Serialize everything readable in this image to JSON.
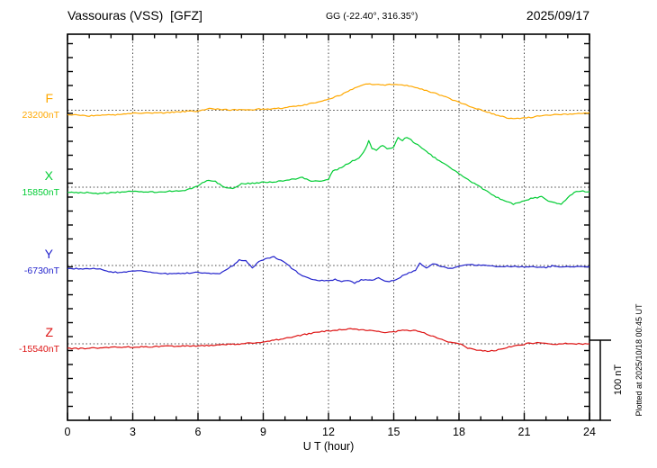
{
  "chart_data": {
    "type": "line",
    "title": "Vassouras (VSS)  [GFZ]",
    "subtitle": "GG (-22.40°, 316.35°)",
    "date": "2025/09/17",
    "xlabel": "U T (hour)",
    "x_range": [
      0,
      24
    ],
    "x_ticks": [
      0,
      3,
      6,
      9,
      12,
      15,
      18,
      21,
      24
    ],
    "x_minor_step_hours": 1,
    "grid": "dotted vertical lines every 3 hours; dotted horizontal line at each series baseline",
    "legend_position": "left",
    "scale_bar_label": "100 nT",
    "scale_bar_nT": 100,
    "plotted_at": "Plotted at 2025/10/18 00:45 UT",
    "units_note": "points are [hour UT, offset in nT from the labelled baseline value]",
    "series": [
      {
        "name": "F",
        "baseline_value_label": "23200nT",
        "baseline_nT": 23200,
        "color": "#FFA800",
        "points": [
          [
            0,
            -5
          ],
          [
            0.5,
            -6
          ],
          [
            1,
            -7
          ],
          [
            1.5,
            -6
          ],
          [
            2,
            -6
          ],
          [
            2.5,
            -5
          ],
          [
            3,
            -4
          ],
          [
            3.5,
            -3.5
          ],
          [
            4,
            -3.5
          ],
          [
            4.5,
            -3
          ],
          [
            5,
            -2
          ],
          [
            5.5,
            -1.5
          ],
          [
            6,
            -1
          ],
          [
            6.3,
            1
          ],
          [
            6.6,
            2
          ],
          [
            7,
            1
          ],
          [
            7.5,
            0.5
          ],
          [
            8,
            0.5
          ],
          [
            8.5,
            1
          ],
          [
            9,
            1.5
          ],
          [
            9.5,
            2
          ],
          [
            10,
            3
          ],
          [
            10.5,
            5
          ],
          [
            11,
            7
          ],
          [
            11.5,
            10
          ],
          [
            12,
            14
          ],
          [
            12.5,
            18
          ],
          [
            13,
            25
          ],
          [
            13.3,
            28
          ],
          [
            13.6,
            31
          ],
          [
            13.8,
            33
          ],
          [
            14,
            31
          ],
          [
            14.3,
            32
          ],
          [
            14.6,
            31
          ],
          [
            15,
            32
          ],
          [
            15.3,
            32
          ],
          [
            15.6,
            30.5
          ],
          [
            16,
            28
          ],
          [
            16.5,
            24
          ],
          [
            17,
            20
          ],
          [
            17.5,
            15
          ],
          [
            18,
            10
          ],
          [
            18.5,
            5
          ],
          [
            19,
            0.5
          ],
          [
            19.5,
            -4
          ],
          [
            20,
            -8
          ],
          [
            20.5,
            -11
          ],
          [
            21,
            -9.5
          ],
          [
            21.5,
            -8
          ],
          [
            22,
            -6
          ],
          [
            22.5,
            -5.5
          ],
          [
            23,
            -5
          ],
          [
            23.5,
            -4
          ],
          [
            24,
            -3
          ]
        ]
      },
      {
        "name": "X",
        "baseline_value_label": "15850nT",
        "baseline_nT": 15850,
        "color": "#00CC33",
        "points": [
          [
            0,
            -6
          ],
          [
            0.5,
            -7
          ],
          [
            1,
            -6.5
          ],
          [
            1.5,
            -8
          ],
          [
            2,
            -6.5
          ],
          [
            2.5,
            -6
          ],
          [
            3,
            -5
          ],
          [
            3.5,
            -5.5
          ],
          [
            4,
            -6
          ],
          [
            4.5,
            -5.5
          ],
          [
            5,
            -4.5
          ],
          [
            5.5,
            -3.5
          ],
          [
            6,
            2
          ],
          [
            6.4,
            8
          ],
          [
            6.8,
            7
          ],
          [
            7.2,
            0
          ],
          [
            7.6,
            -1.5
          ],
          [
            8,
            4
          ],
          [
            8.5,
            5
          ],
          [
            9,
            6
          ],
          [
            9.5,
            6.5
          ],
          [
            10,
            8
          ],
          [
            10.5,
            10.5
          ],
          [
            10.8,
            12
          ],
          [
            11.2,
            8
          ],
          [
            11.6,
            7
          ],
          [
            12,
            10
          ],
          [
            12.2,
            20
          ],
          [
            12.5,
            23
          ],
          [
            13,
            31
          ],
          [
            13.4,
            36
          ],
          [
            13.7,
            47
          ],
          [
            13.85,
            57
          ],
          [
            14,
            48
          ],
          [
            14.2,
            46
          ],
          [
            14.5,
            52
          ],
          [
            14.7,
            47
          ],
          [
            15,
            49.5
          ],
          [
            15.2,
            61
          ],
          [
            15.4,
            58
          ],
          [
            15.6,
            62
          ],
          [
            15.9,
            56
          ],
          [
            16.2,
            50
          ],
          [
            16.5,
            44
          ],
          [
            17,
            34
          ],
          [
            17.5,
            26
          ],
          [
            18,
            17
          ],
          [
            18.5,
            8
          ],
          [
            19,
            0
          ],
          [
            19.5,
            -9
          ],
          [
            20,
            -16
          ],
          [
            20.5,
            -21
          ],
          [
            21,
            -17
          ],
          [
            21.3,
            -14
          ],
          [
            21.8,
            -12
          ],
          [
            22.2,
            -18
          ],
          [
            22.7,
            -21
          ],
          [
            23,
            -13
          ],
          [
            23.4,
            -4.5
          ],
          [
            23.7,
            -5
          ],
          [
            24,
            -5.5
          ]
        ]
      },
      {
        "name": "Y",
        "baseline_value_label": "-6730nT",
        "baseline_nT": -6730,
        "color": "#2222CC",
        "points": [
          [
            0,
            -3.5
          ],
          [
            0.5,
            -4
          ],
          [
            1,
            -4
          ],
          [
            1.5,
            -4.5
          ],
          [
            2,
            -8
          ],
          [
            2.5,
            -9
          ],
          [
            3,
            -7
          ],
          [
            3.3,
            -6
          ],
          [
            3.6,
            -8
          ],
          [
            4,
            -9
          ],
          [
            4.3,
            -9.5
          ],
          [
            4.6,
            -10.5
          ],
          [
            5,
            -10
          ],
          [
            5.4,
            -9.5
          ],
          [
            5.9,
            -8.5
          ],
          [
            6.3,
            -9.5
          ],
          [
            6.6,
            -10.5
          ],
          [
            7,
            -9.5
          ],
          [
            7.3,
            -5.5
          ],
          [
            7.7,
            2
          ],
          [
            7.9,
            7
          ],
          [
            8.2,
            5.5
          ],
          [
            8.5,
            -3
          ],
          [
            8.8,
            5.5
          ],
          [
            9.1,
            8
          ],
          [
            9.5,
            10.5
          ],
          [
            9.9,
            5.5
          ],
          [
            10.2,
            -1
          ],
          [
            10.7,
            -11
          ],
          [
            11,
            -15
          ],
          [
            11.5,
            -18
          ],
          [
            12,
            -19
          ],
          [
            12.3,
            -17
          ],
          [
            12.6,
            -19.5
          ],
          [
            13,
            -19
          ],
          [
            13.2,
            -22
          ],
          [
            13.5,
            -18
          ],
          [
            14,
            -18.5
          ],
          [
            14.3,
            -15
          ],
          [
            14.6,
            -20
          ],
          [
            15,
            -19
          ],
          [
            15.5,
            -11.5
          ],
          [
            16,
            -5.5
          ],
          [
            16.2,
            3.5
          ],
          [
            16.5,
            -3
          ],
          [
            16.8,
            2
          ],
          [
            17.2,
            -1
          ],
          [
            17.6,
            -4
          ],
          [
            18,
            -1
          ],
          [
            18.5,
            1
          ],
          [
            19,
            0.5
          ],
          [
            19.5,
            -0.5
          ],
          [
            20,
            -1.5
          ],
          [
            20.5,
            -1
          ],
          [
            21,
            -2
          ],
          [
            21.5,
            -1.5
          ],
          [
            22,
            -2.5
          ],
          [
            22.3,
            -0.5
          ],
          [
            22.6,
            -2
          ],
          [
            23,
            -1.5
          ],
          [
            23.5,
            -1
          ],
          [
            24,
            -1.5
          ]
        ]
      },
      {
        "name": "Z",
        "baseline_value_label": "-15540nT",
        "baseline_nT": -15540,
        "color": "#DD1111",
        "points": [
          [
            0,
            -5.5
          ],
          [
            0.5,
            -6
          ],
          [
            1,
            -5.5
          ],
          [
            1.5,
            -5
          ],
          [
            2,
            -4.5
          ],
          [
            2.5,
            -4
          ],
          [
            3,
            -4
          ],
          [
            3.5,
            -3.5
          ],
          [
            4,
            -3.5
          ],
          [
            4.5,
            -3
          ],
          [
            5,
            -3
          ],
          [
            5.5,
            -2.5
          ],
          [
            6,
            -2.5
          ],
          [
            6.5,
            -2
          ],
          [
            7,
            -1
          ],
          [
            7.5,
            -0.5
          ],
          [
            8,
            0
          ],
          [
            8.5,
            1
          ],
          [
            9,
            2.5
          ],
          [
            9.5,
            4.5
          ],
          [
            10,
            6.5
          ],
          [
            10.5,
            9.5
          ],
          [
            11,
            12
          ],
          [
            11.5,
            14.5
          ],
          [
            12,
            16
          ],
          [
            12.3,
            16.5
          ],
          [
            12.6,
            17.5
          ],
          [
            13,
            18.5
          ],
          [
            13.3,
            18
          ],
          [
            13.6,
            17
          ],
          [
            14,
            17
          ],
          [
            14.3,
            15.5
          ],
          [
            14.6,
            14
          ],
          [
            15,
            14.5
          ],
          [
            15.3,
            16.5
          ],
          [
            15.6,
            17
          ],
          [
            16,
            16
          ],
          [
            16.4,
            13.5
          ],
          [
            16.8,
            9
          ],
          [
            17.2,
            5
          ],
          [
            17.6,
            2
          ],
          [
            18,
            0.5
          ],
          [
            18.4,
            -5
          ],
          [
            18.8,
            -8
          ],
          [
            19.2,
            -9
          ],
          [
            19.6,
            -8.5
          ],
          [
            20,
            -6
          ],
          [
            20.4,
            -3.5
          ],
          [
            20.8,
            -1.5
          ],
          [
            21.2,
            0.5
          ],
          [
            21.6,
            1
          ],
          [
            22,
            0
          ],
          [
            22.5,
            -0.5
          ],
          [
            23,
            0.5
          ],
          [
            23.5,
            0
          ],
          [
            24,
            0
          ]
        ]
      }
    ]
  }
}
